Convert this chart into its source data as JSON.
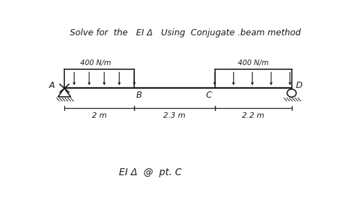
{
  "title": "Solve for  the   EI Δ   Using  Conjugate .beam method",
  "point_A": 0.55,
  "point_B": 2.55,
  "point_C": 4.85,
  "point_D": 7.05,
  "load_label_left": "400 N/m",
  "load_label_right": "400 N/m",
  "bottom_text": "EI Δ  @  pt. C",
  "bg_color": "#ffffff",
  "line_color": "#1a1a1a",
  "text_color": "#1a1a1a",
  "span_AB_label": "2 m",
  "span_BC_label": "2.3 m",
  "span_CD_label": "2.2 m"
}
